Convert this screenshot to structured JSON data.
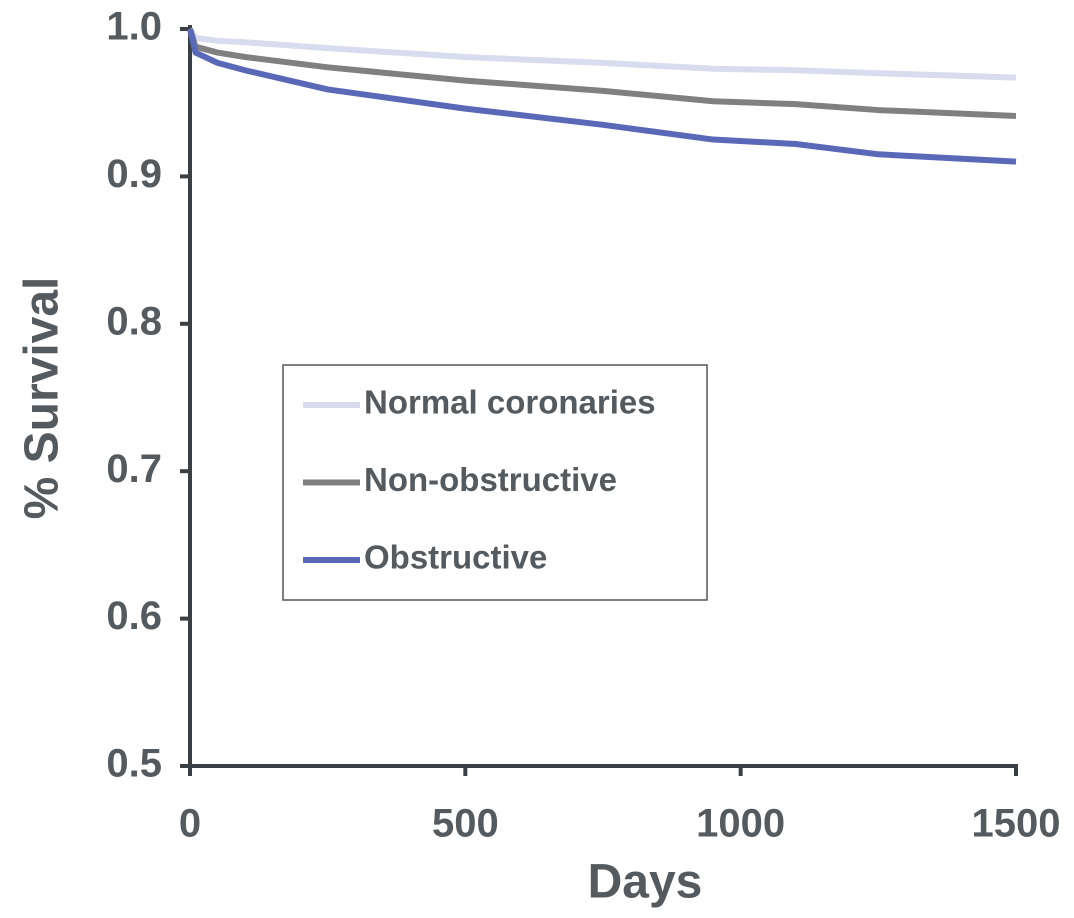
{
  "chart_data": {
    "type": "line",
    "xlabel": "Days",
    "ylabel": "% Survival",
    "x": [
      0,
      10,
      50,
      100,
      250,
      500,
      750,
      950,
      1100,
      1250,
      1500
    ],
    "series": [
      {
        "name": "Normal coronaries",
        "color": "#d9dcef",
        "values": [
          1.0,
          0.994,
          0.992,
          0.991,
          0.987,
          0.981,
          0.977,
          0.973,
          0.972,
          0.97,
          0.967
        ]
      },
      {
        "name": "Non-obstructive",
        "color": "#808080",
        "values": [
          1.0,
          0.988,
          0.984,
          0.981,
          0.974,
          0.965,
          0.958,
          0.951,
          0.949,
          0.945,
          0.941
        ]
      },
      {
        "name": "Obstructive",
        "color": "#5a68b8",
        "values": [
          1.0,
          0.984,
          0.977,
          0.972,
          0.959,
          0.946,
          0.935,
          0.925,
          0.922,
          0.915,
          0.91
        ]
      }
    ],
    "xlim": [
      0,
      1500
    ],
    "xticks": [
      0,
      500,
      1000,
      1500
    ],
    "ylim": [
      0.5,
      1.0
    ],
    "yticks": [
      0.5,
      0.6,
      0.7,
      0.8,
      0.9,
      {
        "value": 1.0,
        "label": "1.0"
      }
    ],
    "legend": "center-left"
  }
}
